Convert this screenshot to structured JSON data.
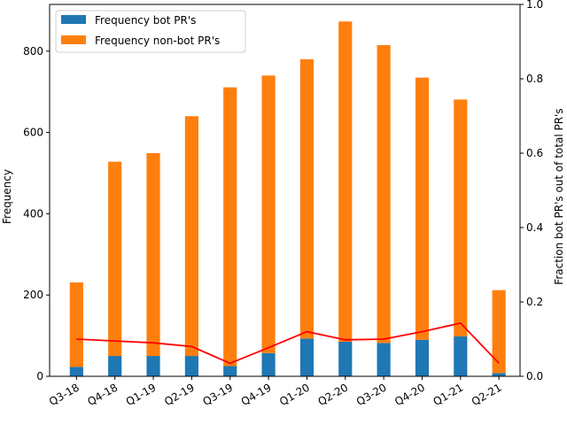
{
  "chart_data": {
    "type": "bar",
    "stacked": true,
    "categories": [
      "Q3-18",
      "Q4-18",
      "Q1-19",
      "Q2-19",
      "Q3-19",
      "Q4-19",
      "Q1-20",
      "Q2-20",
      "Q3-20",
      "Q4-20",
      "Q1-21",
      "Q2-21"
    ],
    "series": [
      {
        "name": "Frequency bot PR's",
        "color": "#1f77b4",
        "axis": "left",
        "values": [
          23,
          50,
          50,
          50,
          25,
          57,
          93,
          85,
          82,
          90,
          98,
          8
        ]
      },
      {
        "name": "Frequency non-bot PR's",
        "color": "#ff7f0e",
        "axis": "left",
        "values": [
          208,
          478,
          499,
          590,
          686,
          683,
          687,
          788,
          733,
          645,
          583,
          204
        ]
      }
    ],
    "line": {
      "color": "#ff0000",
      "axis": "right",
      "values": [
        0.1,
        0.095,
        0.09,
        0.08,
        0.035,
        0.077,
        0.12,
        0.098,
        0.1,
        0.12,
        0.143,
        0.035
      ]
    },
    "ylabel": "Frequency",
    "y2label": "Fraction bot PR's out of total PR's",
    "ylim": [
      0,
      915
    ],
    "y2lim": [
      0,
      1.0
    ],
    "yticks": [
      0,
      200,
      400,
      600,
      800
    ],
    "y2ticks": [
      0.0,
      0.2,
      0.4,
      0.6,
      0.8,
      1.0
    ],
    "grid": false,
    "legend_position": "top-left"
  }
}
